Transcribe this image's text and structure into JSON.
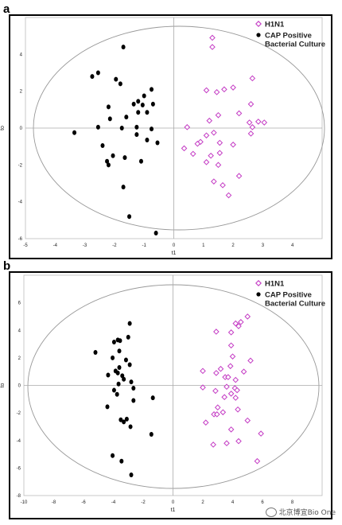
{
  "chart_data": [
    {
      "panel": "a",
      "type": "scatter",
      "xlabel": "t1",
      "ylabel": "to",
      "xlim": [
        -5,
        5
      ],
      "ylim": [
        -6,
        6
      ],
      "xticks": [
        -5,
        -4,
        -3,
        -2,
        -1,
        0,
        1,
        2,
        3,
        4
      ],
      "yticks": [
        -6,
        -4,
        -2,
        0,
        2,
        4
      ],
      "legend_position": "top-right",
      "series": [
        {
          "name": "H1N1",
          "marker": "diamond",
          "color": "#c43cc4",
          "points": [
            [
              1.3,
              4.9
            ],
            [
              1.3,
              4.4
            ],
            [
              2.65,
              2.7
            ],
            [
              1.1,
              2.05
            ],
            [
              1.45,
              1.95
            ],
            [
              1.7,
              2.1
            ],
            [
              2.0,
              2.2
            ],
            [
              2.6,
              1.3
            ],
            [
              2.2,
              0.8
            ],
            [
              1.5,
              0.7
            ],
            [
              1.2,
              0.4
            ],
            [
              2.55,
              0.3
            ],
            [
              2.85,
              0.35
            ],
            [
              3.05,
              0.3
            ],
            [
              2.65,
              0.05
            ],
            [
              0.45,
              0.05
            ],
            [
              1.35,
              -0.25
            ],
            [
              2.6,
              -0.3
            ],
            [
              1.1,
              -0.4
            ],
            [
              0.9,
              -0.75
            ],
            [
              0.8,
              -0.85
            ],
            [
              1.55,
              -0.8
            ],
            [
              2.0,
              -0.9
            ],
            [
              0.35,
              -1.1
            ],
            [
              0.65,
              -1.4
            ],
            [
              1.25,
              -1.5
            ],
            [
              1.55,
              -1.35
            ],
            [
              1.1,
              -1.85
            ],
            [
              1.5,
              -2.0
            ],
            [
              2.2,
              -2.6
            ],
            [
              1.35,
              -2.9
            ],
            [
              1.65,
              -3.1
            ],
            [
              1.85,
              -3.65
            ]
          ]
        },
        {
          "name": "CAP Positive Bacterial Culture",
          "marker": "circle",
          "color": "#000000",
          "points": [
            [
              -1.7,
              4.4
            ],
            [
              -2.55,
              3.0
            ],
            [
              -2.75,
              2.8
            ],
            [
              -1.95,
              2.65
            ],
            [
              -1.8,
              2.4
            ],
            [
              -0.75,
              2.1
            ],
            [
              -1.0,
              1.75
            ],
            [
              -1.2,
              1.45
            ],
            [
              -1.05,
              1.25
            ],
            [
              -1.35,
              1.3
            ],
            [
              -0.7,
              1.3
            ],
            [
              -2.2,
              1.15
            ],
            [
              -1.2,
              0.85
            ],
            [
              -0.9,
              0.85
            ],
            [
              -1.6,
              0.6
            ],
            [
              -2.15,
              0.5
            ],
            [
              -2.55,
              0.05
            ],
            [
              -1.75,
              0.0
            ],
            [
              -1.25,
              0.05
            ],
            [
              -0.75,
              -0.05
            ],
            [
              -3.35,
              -0.25
            ],
            [
              -1.25,
              -0.35
            ],
            [
              -0.9,
              -0.65
            ],
            [
              -0.55,
              -0.8
            ],
            [
              -2.4,
              -0.95
            ],
            [
              -2.05,
              -1.5
            ],
            [
              -2.25,
              -1.8
            ],
            [
              -2.2,
              -2.0
            ],
            [
              -1.65,
              -1.6
            ],
            [
              -1.1,
              -1.8
            ],
            [
              -1.7,
              -3.2
            ],
            [
              -1.5,
              -4.8
            ],
            [
              -0.6,
              -5.7
            ]
          ]
        }
      ]
    },
    {
      "panel": "b",
      "type": "scatter",
      "xlabel": "t1",
      "ylabel": "to",
      "xlim": [
        -10,
        10
      ],
      "ylim": [
        -8,
        8
      ],
      "xticks": [
        -10,
        -8,
        -6,
        -4,
        -2,
        0,
        2,
        4,
        6,
        8
      ],
      "yticks": [
        -8,
        -6,
        -4,
        -2,
        0,
        2,
        4,
        6
      ],
      "legend_position": "top-right",
      "series": [
        {
          "name": "H1N1",
          "marker": "diamond",
          "color": "#c43cc4",
          "points": [
            [
              5.0,
              5.0
            ],
            [
              4.55,
              4.6
            ],
            [
              4.2,
              4.5
            ],
            [
              4.4,
              4.3
            ],
            [
              2.9,
              3.9
            ],
            [
              3.9,
              3.85
            ],
            [
              3.9,
              2.9
            ],
            [
              4.0,
              2.1
            ],
            [
              5.2,
              1.8
            ],
            [
              3.85,
              1.4
            ],
            [
              3.2,
              1.2
            ],
            [
              2.0,
              1.05
            ],
            [
              4.75,
              1.0
            ],
            [
              3.5,
              0.6
            ],
            [
              3.7,
              0.6
            ],
            [
              4.2,
              0.4
            ],
            [
              2.9,
              0.9
            ],
            [
              2.0,
              -0.15
            ],
            [
              3.6,
              -0.1
            ],
            [
              4.15,
              -0.2
            ],
            [
              4.3,
              -0.35
            ],
            [
              3.9,
              -0.6
            ],
            [
              2.85,
              -0.4
            ],
            [
              3.45,
              -0.85
            ],
            [
              4.2,
              -0.9
            ],
            [
              3.0,
              -1.6
            ],
            [
              2.75,
              -2.1
            ],
            [
              2.95,
              -2.1
            ],
            [
              3.35,
              -1.95
            ],
            [
              4.35,
              -1.75
            ],
            [
              2.2,
              -2.7
            ],
            [
              5.0,
              -2.55
            ],
            [
              3.9,
              -3.2
            ],
            [
              5.9,
              -3.5
            ],
            [
              2.7,
              -4.3
            ],
            [
              3.6,
              -4.2
            ],
            [
              4.4,
              -4.05
            ],
            [
              5.65,
              -5.5
            ]
          ]
        },
        {
          "name": "CAP Positive Bacterial Culture",
          "marker": "circle",
          "color": "#000000",
          "points": [
            [
              -2.9,
              4.5
            ],
            [
              -3.0,
              3.5
            ],
            [
              -3.55,
              3.25
            ],
            [
              -3.7,
              3.3
            ],
            [
              -3.95,
              3.15
            ],
            [
              -5.2,
              2.4
            ],
            [
              -3.6,
              2.5
            ],
            [
              -4.05,
              2.0
            ],
            [
              -3.15,
              1.85
            ],
            [
              -2.9,
              1.5
            ],
            [
              -3.6,
              1.3
            ],
            [
              -3.85,
              1.05
            ],
            [
              -3.7,
              0.9
            ],
            [
              -4.35,
              0.75
            ],
            [
              -3.4,
              0.7
            ],
            [
              -3.3,
              0.45
            ],
            [
              -2.8,
              0.25
            ],
            [
              -3.65,
              0.1
            ],
            [
              -2.65,
              -0.2
            ],
            [
              -3.95,
              -0.35
            ],
            [
              -3.75,
              -0.65
            ],
            [
              -1.35,
              -0.9
            ],
            [
              -2.65,
              -1.1
            ],
            [
              -4.4,
              -1.55
            ],
            [
              -3.5,
              -2.5
            ],
            [
              -3.1,
              -2.45
            ],
            [
              -3.3,
              -2.65
            ],
            [
              -2.85,
              -3.0
            ],
            [
              -1.45,
              -3.55
            ],
            [
              -4.05,
              -5.1
            ],
            [
              -3.45,
              -5.5
            ],
            [
              -2.8,
              -6.5
            ]
          ]
        }
      ]
    }
  ],
  "watermark": "北京博宜Bio One"
}
